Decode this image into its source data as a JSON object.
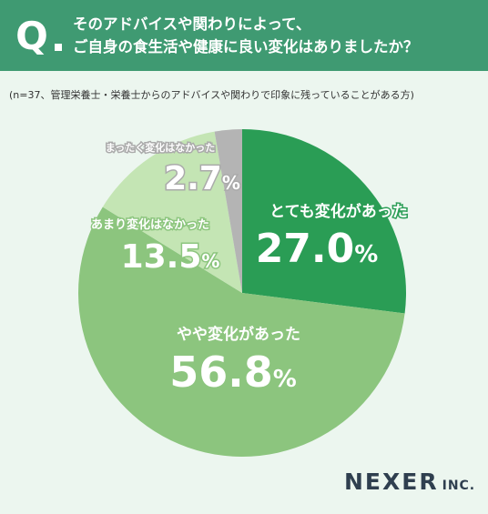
{
  "header": {
    "q_label": "Q",
    "question_line1": "そのアドバイスや関わりによって、",
    "question_line2": "ご自身の食生活や健康に良い変化はありましたか？"
  },
  "note": "(n=37、管理栄養士・栄養士からのアドバイスや関わりで印象に残っていることがある方)",
  "logo": {
    "main": "NEXER",
    "sub": "INC."
  },
  "chart_data": {
    "type": "pie",
    "start_angle_deg": 0,
    "direction": "clockwise",
    "slices": [
      {
        "label": "とても変化があった",
        "value": 27.0,
        "value_text": "27.0",
        "unit": "%",
        "color": "#2a9d55",
        "label_color": "#ffffff"
      },
      {
        "label": "やや変化があった",
        "value": 56.8,
        "value_text": "56.8",
        "unit": "%",
        "color": "#8cc57e",
        "label_color": "#ffffff"
      },
      {
        "label": "あまり変化はなかった",
        "value": 13.5,
        "value_text": "13.5",
        "unit": "%",
        "color": "#c4e5b4",
        "label_color": "#ffffff"
      },
      {
        "label": "まったく変化はなかった",
        "value": 2.7,
        "value_text": "2.7",
        "unit": "%",
        "color": "#b4b4b4",
        "label_color": "#ffffff"
      }
    ]
  }
}
